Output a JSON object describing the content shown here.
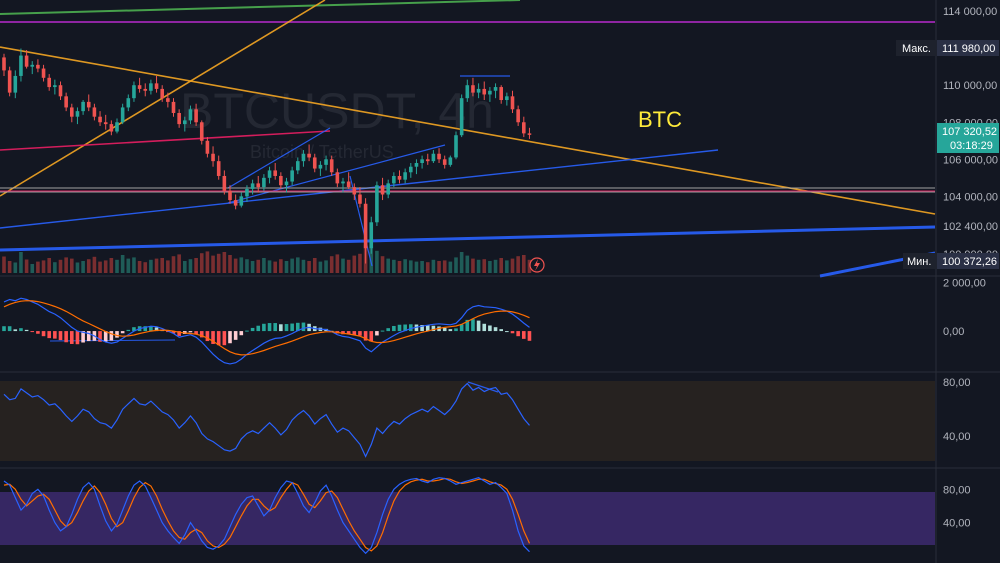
{
  "chart_data": {
    "type": "candlestick",
    "watermark": {
      "symbol": "BTCUSDT, 4h",
      "description": "Bitcoin / TetherUS"
    },
    "annotation": "BTC",
    "colors": {
      "background": "#131722",
      "up": "#26a69a",
      "down": "#ef5350",
      "volume_up": "#1f5c58",
      "volume_down": "#7a2e30",
      "macd_line": "#2962ff",
      "signal_line": "#ff6d00",
      "rsi_line": "#2962ff",
      "rsi_band": "#2a2420",
      "stoch_k": "#2962ff",
      "stoch_d": "#ff6d00",
      "stoch_band": "#3d2a6e",
      "trend_orange": "#f5a623",
      "trend_blue": "#2962ff",
      "trend_pink": "#e91e63",
      "trend_green": "#4caf50",
      "trend_purple": "#9c27b0",
      "horizontal_gray": "#b0b0b0",
      "annotation_yellow": "#ffeb3b"
    },
    "price_axis": {
      "ticks": [
        "114 000,00",
        "110 000,00",
        "108 000,00",
        "106 000,00",
        "104 000,00",
        "102 400,00",
        "100 900,00"
      ],
      "tick_values": [
        114000,
        110000,
        108000,
        106000,
        104000,
        102400,
        100900
      ],
      "ylim": [
        99700,
        114600
      ]
    },
    "price_tags": {
      "max_label": "Макс.",
      "max_value": "111 980,00",
      "min_label": "Мин.",
      "min_value": "100 372,26",
      "current_value": "107 320,52",
      "countdown": "03:18:29"
    },
    "candles": [
      [
        111500,
        111700,
        110500,
        110800
      ],
      [
        110800,
        111000,
        109400,
        109600
      ],
      [
        109600,
        110800,
        109300,
        110500
      ],
      [
        110500,
        111980,
        110200,
        111600
      ],
      [
        111600,
        111900,
        110900,
        111000
      ],
      [
        111000,
        111300,
        110600,
        111100
      ],
      [
        111100,
        111400,
        110700,
        110900
      ],
      [
        110900,
        111100,
        110200,
        110400
      ],
      [
        110400,
        110600,
        109700,
        109900
      ],
      [
        109900,
        110300,
        109500,
        110000
      ],
      [
        110000,
        110200,
        109200,
        109400
      ],
      [
        109400,
        109600,
        108600,
        108800
      ],
      [
        108800,
        109000,
        108000,
        108300
      ],
      [
        108300,
        108800,
        107900,
        108600
      ],
      [
        108600,
        109200,
        108400,
        109100
      ],
      [
        109100,
        109500,
        108600,
        108800
      ],
      [
        108800,
        109000,
        108100,
        108300
      ],
      [
        108300,
        108600,
        107800,
        108000
      ],
      [
        108000,
        108400,
        107600,
        107900
      ],
      [
        107900,
        108100,
        107300,
        107500
      ],
      [
        107500,
        108200,
        107400,
        108000
      ],
      [
        108000,
        109000,
        107900,
        108800
      ],
      [
        108800,
        109500,
        108600,
        109300
      ],
      [
        109300,
        110200,
        109100,
        110000
      ],
      [
        110000,
        110400,
        109600,
        109800
      ],
      [
        109800,
        110100,
        109400,
        109700
      ],
      [
        109700,
        110300,
        109500,
        110100
      ],
      [
        110100,
        110500,
        109600,
        109800
      ],
      [
        109800,
        110000,
        109100,
        109300
      ],
      [
        109300,
        109600,
        108800,
        109100
      ],
      [
        109100,
        109300,
        108300,
        108500
      ],
      [
        108500,
        108700,
        107700,
        107900
      ],
      [
        107900,
        108300,
        107500,
        108100
      ],
      [
        108100,
        108900,
        107900,
        108700
      ],
      [
        108700,
        109000,
        107800,
        108000
      ],
      [
        108000,
        108100,
        106800,
        107000
      ],
      [
        107000,
        107200,
        106100,
        106300
      ],
      [
        106300,
        106700,
        105600,
        105900
      ],
      [
        105900,
        106200,
        104900,
        105100
      ],
      [
        105100,
        105400,
        104100,
        104300
      ],
      [
        104300,
        104600,
        103600,
        103800
      ],
      [
        103800,
        104100,
        103300,
        103500
      ],
      [
        103500,
        104200,
        103400,
        104000
      ],
      [
        104000,
        104600,
        103700,
        104400
      ],
      [
        104400,
        104900,
        104100,
        104700
      ],
      [
        104700,
        105100,
        104200,
        104500
      ],
      [
        104500,
        105200,
        104300,
        105000
      ],
      [
        105000,
        105600,
        104700,
        105400
      ],
      [
        105400,
        105800,
        104900,
        105100
      ],
      [
        105100,
        105300,
        104400,
        104600
      ],
      [
        104600,
        105000,
        104200,
        104800
      ],
      [
        104800,
        105600,
        104600,
        105400
      ],
      [
        105400,
        106100,
        105200,
        105900
      ],
      [
        105900,
        106500,
        105600,
        106300
      ],
      [
        106300,
        106800,
        105900,
        106100
      ],
      [
        106100,
        106300,
        105300,
        105500
      ],
      [
        105500,
        105900,
        105100,
        105700
      ],
      [
        105700,
        106200,
        105400,
        106000
      ],
      [
        106000,
        106200,
        105100,
        105300
      ],
      [
        105300,
        105500,
        104500,
        104700
      ],
      [
        104700,
        105000,
        104200,
        104800
      ],
      [
        104800,
        105300,
        104400,
        104500
      ],
      [
        104500,
        104700,
        103800,
        104100
      ],
      [
        104100,
        104500,
        103400,
        103600
      ],
      [
        103600,
        103900,
        100372,
        101200
      ],
      [
        101200,
        102900,
        100900,
        102600
      ],
      [
        102600,
        104800,
        102400,
        104600
      ],
      [
        104600,
        105000,
        103800,
        104100
      ],
      [
        104100,
        104900,
        103900,
        104700
      ],
      [
        104700,
        105300,
        104500,
        105100
      ],
      [
        105100,
        105400,
        104700,
        104900
      ],
      [
        104900,
        105500,
        104700,
        105300
      ],
      [
        105300,
        105800,
        105000,
        105600
      ],
      [
        105600,
        106000,
        105200,
        105800
      ],
      [
        105800,
        106200,
        105500,
        106000
      ],
      [
        106000,
        106300,
        105700,
        105900
      ],
      [
        105900,
        106500,
        105800,
        106300
      ],
      [
        106300,
        106600,
        105800,
        106000
      ],
      [
        106000,
        106200,
        105500,
        105700
      ],
      [
        105700,
        106200,
        105600,
        106100
      ],
      [
        106100,
        107500,
        106000,
        107300
      ],
      [
        107300,
        109500,
        107200,
        109300
      ],
      [
        109300,
        110300,
        109100,
        110000
      ],
      [
        110000,
        110400,
        109400,
        109600
      ],
      [
        109600,
        110100,
        109300,
        109800
      ],
      [
        109800,
        110200,
        109200,
        109500
      ],
      [
        109500,
        109900,
        109100,
        109700
      ],
      [
        109700,
        110100,
        109300,
        109900
      ],
      [
        109900,
        110000,
        109000,
        109200
      ],
      [
        109200,
        109600,
        108900,
        109400
      ],
      [
        109400,
        109700,
        108500,
        108700
      ],
      [
        108700,
        108900,
        107800,
        108000
      ],
      [
        108000,
        108300,
        107200,
        107400
      ],
      [
        107400,
        107700,
        107100,
        107320
      ]
    ],
    "volume": [
      55,
      40,
      35,
      70,
      45,
      30,
      38,
      42,
      50,
      36,
      44,
      52,
      48,
      35,
      40,
      46,
      54,
      38,
      42,
      50,
      44,
      60,
      48,
      52,
      40,
      36,
      44,
      48,
      50,
      42,
      56,
      62,
      40,
      46,
      50,
      66,
      72,
      58,
      64,
      70,
      60,
      48,
      52,
      46,
      40,
      44,
      50,
      42,
      38,
      46,
      40,
      48,
      52,
      44,
      40,
      50,
      38,
      42,
      56,
      62,
      48,
      44,
      58,
      64,
      95,
      88,
      74,
      56,
      48,
      44,
      40,
      46,
      42,
      38,
      40,
      36,
      44,
      40,
      42,
      38,
      52,
      70,
      58,
      48,
      44,
      46,
      40,
      44,
      50,
      42,
      48,
      56,
      60,
      44
    ],
    "macd_axis": {
      "ticks": [
        "2 000,00",
        "0,00"
      ],
      "tick_values": [
        2000,
        0
      ],
      "ylim": [
        -1600,
        2100
      ]
    },
    "macd": [
      1200,
      1300,
      1250,
      1350,
      1300,
      1200,
      1100,
      950,
      800,
      700,
      550,
      350,
      150,
      0,
      -50,
      -100,
      -200,
      -350,
      -450,
      -500,
      -450,
      -300,
      -150,
      0,
      100,
      150,
      200,
      180,
      100,
      0,
      -100,
      -250,
      -200,
      -150,
      -250,
      -450,
      -700,
      -950,
      -1150,
      -1300,
      -1350,
      -1300,
      -1150,
      -950,
      -800,
      -650,
      -500,
      -380,
      -300,
      -280,
      -200,
      -100,
      20,
      120,
      150,
      100,
      80,
      60,
      -20,
      -150,
      -220,
      -250,
      -320,
      -400,
      -700,
      -850,
      -650,
      -450,
      -320,
      -180,
      -60,
      20,
      100,
      160,
      200,
      240,
      280,
      300,
      280,
      260,
      320,
      550,
      850,
      1000,
      1050,
      1000,
      980,
      960,
      900,
      820,
      700,
      520,
      330,
      150
    ],
    "macd_signal": [
      1000,
      1100,
      1180,
      1230,
      1250,
      1240,
      1210,
      1160,
      1090,
      1010,
      920,
      810,
      680,
      540,
      420,
      310,
      200,
      90,
      -20,
      -110,
      -180,
      -210,
      -200,
      -160,
      -100,
      -50,
      0,
      30,
      40,
      30,
      0,
      -50,
      -80,
      -100,
      -130,
      -190,
      -290,
      -420,
      -570,
      -720,
      -850,
      -940,
      -980,
      -970,
      -930,
      -870,
      -800,
      -710,
      -630,
      -560,
      -490,
      -410,
      -320,
      -230,
      -150,
      -100,
      -60,
      -30,
      -30,
      -55,
      -90,
      -120,
      -160,
      -210,
      -310,
      -420,
      -470,
      -470,
      -440,
      -390,
      -320,
      -250,
      -180,
      -110,
      -50,
      0,
      60,
      110,
      150,
      180,
      210,
      280,
      390,
      510,
      620,
      700,
      750,
      800,
      820,
      820,
      790,
      730,
      650,
      550
    ],
    "rsi_axis": {
      "ticks": [
        "80,00",
        "40,00"
      ],
      "tick_values": [
        80,
        40
      ],
      "ylim": [
        18,
        86
      ]
    },
    "rsi": [
      71,
      67,
      68,
      75,
      72,
      69,
      70,
      67,
      63,
      64,
      60,
      55,
      51,
      55,
      60,
      58,
      53,
      50,
      49,
      46,
      52,
      60,
      64,
      68,
      64,
      63,
      66,
      62,
      58,
      56,
      52,
      46,
      50,
      55,
      50,
      42,
      38,
      36,
      33,
      30,
      29,
      31,
      38,
      42,
      44,
      42,
      46,
      50,
      46,
      41,
      45,
      52,
      56,
      59,
      55,
      49,
      53,
      56,
      49,
      43,
      46,
      44,
      39,
      34,
      25,
      34,
      46,
      42,
      47,
      51,
      49,
      53,
      56,
      58,
      60,
      58,
      62,
      59,
      56,
      60,
      66,
      75,
      79,
      74,
      76,
      73,
      75,
      76,
      71,
      72,
      67,
      60,
      53,
      48
    ],
    "stoch_axis": {
      "ticks": [
        "80,00",
        "40,00"
      ],
      "tick_values": [
        80,
        40
      ],
      "ylim": [
        -5,
        102
      ]
    },
    "stoch_k": [
      90,
      85,
      70,
      55,
      62,
      75,
      80,
      72,
      55,
      40,
      30,
      35,
      50,
      68,
      82,
      88,
      80,
      60,
      42,
      30,
      38,
      55,
      72,
      85,
      90,
      84,
      70,
      55,
      40,
      30,
      22,
      15,
      25,
      40,
      30,
      18,
      10,
      8,
      12,
      20,
      35,
      50,
      62,
      70,
      72,
      60,
      48,
      55,
      70,
      82,
      90,
      88,
      75,
      60,
      52,
      64,
      78,
      85,
      72,
      55,
      40,
      30,
      20,
      10,
      3,
      10,
      28,
      50,
      68,
      80,
      86,
      90,
      92,
      93,
      90,
      88,
      92,
      94,
      93,
      90,
      86,
      88,
      90,
      92,
      94,
      90,
      86,
      88,
      82,
      75,
      55,
      30,
      12,
      5
    ],
    "stoch_d": [
      85,
      86,
      80,
      68,
      60,
      66,
      72,
      74,
      68,
      55,
      42,
      35,
      40,
      52,
      66,
      78,
      84,
      76,
      62,
      45,
      35,
      40,
      54,
      70,
      82,
      88,
      84,
      72,
      56,
      42,
      30,
      22,
      20,
      28,
      32,
      28,
      18,
      12,
      10,
      14,
      22,
      35,
      48,
      60,
      68,
      68,
      60,
      54,
      58,
      70,
      80,
      88,
      85,
      74,
      62,
      58,
      66,
      76,
      78,
      70,
      56,
      42,
      30,
      20,
      10,
      6,
      12,
      28,
      48,
      66,
      78,
      85,
      89,
      91,
      92,
      90,
      90,
      91,
      93,
      92,
      89,
      87,
      88,
      90,
      92,
      92,
      89,
      87,
      85,
      80,
      68,
      50,
      30,
      15
    ]
  }
}
